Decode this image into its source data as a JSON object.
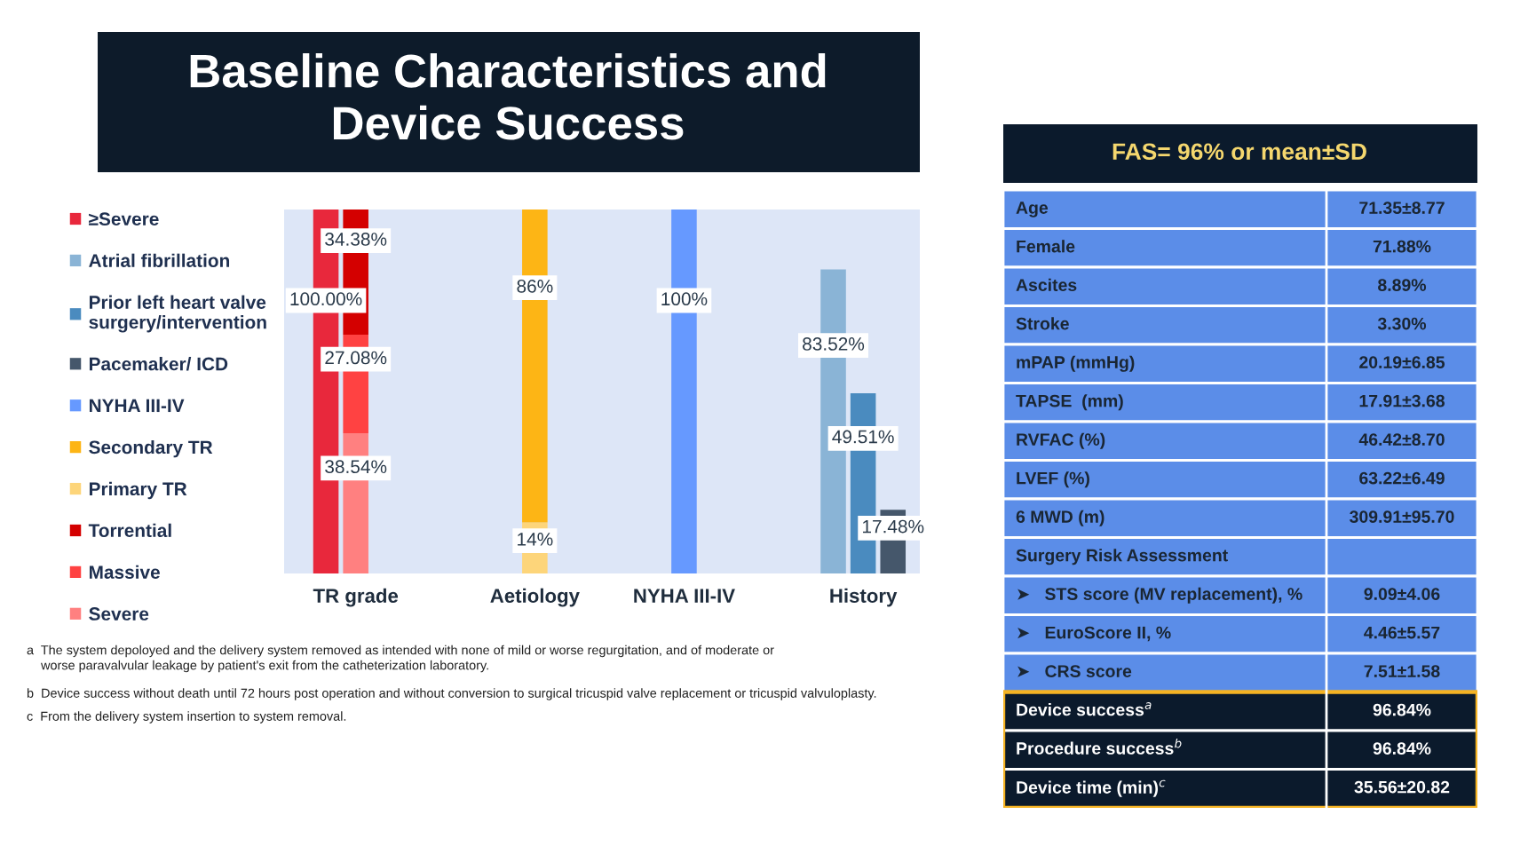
{
  "chart_data": [
    {
      "type": "bar",
      "title": "Baseline Characteristics and\nDevice Success",
      "stacked": true,
      "legend": "left",
      "grid": false,
      "tick_labels": "x",
      "categories": [
        null,
        "TR grade",
        null,
        null,
        null,
        null,
        null,
        "Aetiology",
        null,
        null,
        null,
        null,
        "NYHA III-IV",
        null,
        null,
        null,
        null,
        null,
        "History",
        null
      ],
      "series": [
        {
          "name": "Severe",
          "color": "#ff8080",
          "values": [
            null,
            38.54,
            null,
            null,
            null,
            null,
            null,
            null,
            null,
            null,
            null,
            null,
            null,
            null,
            null,
            null,
            null,
            null,
            null,
            null
          ],
          "value_labels": [
            null,
            "38.54%",
            null,
            null,
            null,
            null,
            null,
            null,
            null,
            null,
            null,
            null,
            null,
            null,
            null,
            null,
            null,
            null,
            null,
            null
          ]
        },
        {
          "name": "Massive",
          "color": "#ff4242",
          "values": [
            null,
            27.08,
            null,
            null,
            null,
            null,
            null,
            null,
            null,
            null,
            null,
            null,
            null,
            null,
            null,
            null,
            null,
            null,
            null,
            null
          ],
          "value_labels": [
            null,
            "27.08%",
            null,
            null,
            null,
            null,
            null,
            null,
            null,
            null,
            null,
            null,
            null,
            null,
            null,
            null,
            null,
            null,
            null,
            null
          ]
        },
        {
          "name": "Torrential",
          "color": "#d40000",
          "values": [
            null,
            34.38,
            null,
            null,
            null,
            null,
            null,
            null,
            null,
            null,
            null,
            null,
            null,
            null,
            null,
            null,
            null,
            null,
            null,
            null
          ],
          "value_labels": [
            null,
            "34.38%",
            null,
            null,
            null,
            null,
            null,
            null,
            null,
            null,
            null,
            null,
            null,
            null,
            null,
            null,
            null,
            null,
            null,
            null
          ]
        },
        {
          "name": "Primary TR",
          "color": "#fdd57a",
          "values": [
            null,
            null,
            null,
            null,
            null,
            null,
            null,
            14,
            null,
            null,
            null,
            null,
            null,
            null,
            null,
            null,
            null,
            null,
            null,
            null
          ],
          "value_labels": [
            null,
            null,
            null,
            null,
            null,
            null,
            null,
            "14%",
            null,
            null,
            null,
            null,
            null,
            null,
            null,
            null,
            null,
            null,
            null,
            null
          ]
        },
        {
          "name": "Secondary TR",
          "color": "#fdb515",
          "values": [
            null,
            null,
            null,
            null,
            null,
            null,
            null,
            86,
            null,
            null,
            null,
            null,
            null,
            null,
            null,
            null,
            null,
            null,
            null,
            null
          ],
          "value_labels": [
            null,
            null,
            null,
            null,
            null,
            null,
            null,
            "86%",
            null,
            null,
            null,
            null,
            null,
            null,
            null,
            null,
            null,
            null,
            null,
            null
          ]
        },
        {
          "name": "NYHA III-IV",
          "color": "#6699ff",
          "values": [
            null,
            null,
            null,
            null,
            null,
            null,
            null,
            null,
            null,
            null,
            null,
            null,
            100,
            null,
            null,
            null,
            null,
            null,
            null,
            null
          ],
          "value_labels": [
            null,
            null,
            null,
            null,
            null,
            null,
            null,
            null,
            null,
            null,
            null,
            null,
            "100%",
            null,
            null,
            null,
            null,
            null,
            null,
            null
          ]
        },
        {
          "name": "Pacemaker/ ICD",
          "color": "#45576b",
          "values": [
            null,
            null,
            null,
            null,
            null,
            null,
            null,
            null,
            null,
            null,
            null,
            null,
            null,
            null,
            null,
            null,
            null,
            null,
            null,
            17.48
          ],
          "value_labels": [
            null,
            null,
            null,
            null,
            null,
            null,
            null,
            null,
            null,
            null,
            null,
            null,
            null,
            null,
            null,
            null,
            null,
            null,
            null,
            "17.48%"
          ]
        },
        {
          "name": "Prior left heart valve\nsurgery/intervention",
          "color": "#4a8bbf",
          "values": [
            null,
            null,
            null,
            null,
            null,
            null,
            null,
            null,
            null,
            null,
            null,
            null,
            null,
            null,
            null,
            null,
            null,
            null,
            49.51,
            null
          ],
          "value_labels": [
            null,
            null,
            null,
            null,
            null,
            null,
            null,
            null,
            null,
            null,
            null,
            null,
            null,
            null,
            null,
            null,
            null,
            null,
            "49.51%",
            null
          ]
        },
        {
          "name": "Atrial fibrillation",
          "color": "#8ab4d6",
          "values": [
            null,
            null,
            null,
            null,
            null,
            null,
            null,
            null,
            null,
            null,
            null,
            null,
            null,
            null,
            null,
            null,
            null,
            83.52,
            null,
            null
          ],
          "value_labels": [
            null,
            null,
            null,
            null,
            null,
            null,
            null,
            null,
            null,
            null,
            null,
            null,
            null,
            null,
            null,
            null,
            null,
            "83.52%",
            null,
            null
          ]
        },
        {
          "name": "≥Severe",
          "color": "#e8283c",
          "values": [
            100,
            null,
            null,
            null,
            null,
            null,
            null,
            null,
            null,
            null,
            null,
            null,
            null,
            null,
            null,
            null,
            null,
            null,
            null,
            null
          ],
          "value_labels": [
            "100.00%",
            null,
            null,
            null,
            null,
            null,
            null,
            null,
            null,
            null,
            null,
            null,
            null,
            null,
            null,
            null,
            null,
            null,
            null,
            null
          ]
        }
      ],
      "annotations": [
        "a  The system depoloyed and the delivery system removed as intended with none of mild or worse regurgitation, and of moderate or\n    worse paravalvular leakage by patient's exit from the catheterization laboratory.",
        "b  Device success without death until 72 hours post operation and without conversion to surgical tricuspid valve replacement or tricuspid valvuloplasty.",
        "c  From the delivery system insertion to system removal."
      ]
    },
    {
      "type": "other",
      "title": "FAS= 96% or mean±SD",
      "categories": [
        "Age",
        "Female",
        "Ascites",
        "Stroke",
        "mPAP (mmHg)",
        "TAPSE  (mm)",
        "RVFAC (%)",
        "LVEF (%)",
        "6 MWD (m)",
        "Surgery Risk Assessment",
        "➤   STS score (MV replacement), %",
        "➤   EuroScore II, %",
        "➤   CRS score",
        "Device success$^{a}$",
        "Procedure success$^{b}$",
        "Device time (min)$^{c}$"
      ],
      "value_labels": [
        "71.35±8.77",
        "71.88%",
        "8.89%",
        "3.30%",
        "20.19±6.85",
        "17.91±3.68",
        "46.42±8.70",
        "63.22±6.49",
        "309.91±95.70",
        null,
        "9.09±4.06",
        "4.46±5.57",
        "7.51±1.58",
        "96.84%",
        "96.84%",
        "35.56±20.82"
      ],
      "colors": [
        "#5b8de8",
        "#5b8de8",
        "#5b8de8",
        "#5b8de8",
        "#5b8de8",
        "#5b8de8",
        "#5b8de8",
        "#5b8de8",
        "#5b8de8",
        "#5b8de8",
        "#5b8de8",
        "#5b8de8",
        "#5b8de8",
        "#0b1a2c",
        "#0b1a2c",
        "#0b1a2c"
      ]
    }
  ]
}
